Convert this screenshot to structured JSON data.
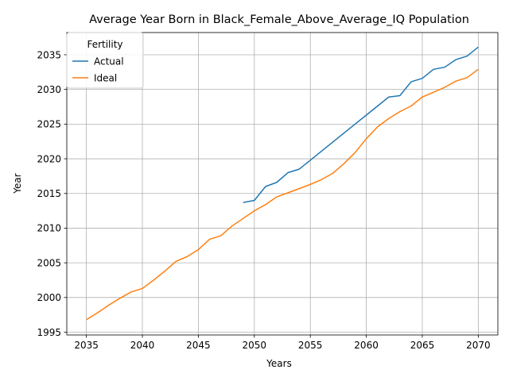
{
  "chart_data": {
    "type": "line",
    "title": "Average Year Born in Black_Female_Above_Average_IQ Population",
    "xlabel": "Years",
    "ylabel": "Year",
    "xlim": [
      2033.25,
      2071.75
    ],
    "ylim": [
      1994.6,
      2038.2
    ],
    "xticks": [
      2035,
      2040,
      2045,
      2050,
      2055,
      2060,
      2065,
      2070
    ],
    "yticks": [
      1995,
      2000,
      2005,
      2010,
      2015,
      2020,
      2025,
      2030,
      2035
    ],
    "grid": true,
    "legend": {
      "title": "Fertility",
      "position": "upper-left"
    },
    "series": [
      {
        "name": "Actual",
        "color": "#1f77b4",
        "x": [
          2049,
          2050,
          2051,
          2052,
          2053,
          2054,
          2055,
          2056,
          2057,
          2058,
          2059,
          2060,
          2061,
          2062,
          2063,
          2064,
          2065,
          2066,
          2067,
          2068,
          2069,
          2070
        ],
        "y": [
          2013.7,
          2014.0,
          2016.0,
          2016.6,
          2018.0,
          2018.5,
          2019.8,
          2021.1,
          2022.4,
          2023.7,
          2025.0,
          2026.3,
          2027.6,
          2028.9,
          2029.1,
          2031.1,
          2031.6,
          2032.9,
          2033.2,
          2034.3,
          2034.8,
          2036.1
        ]
      },
      {
        "name": "Ideal",
        "color": "#ff7f0e",
        "x": [
          2035,
          2036,
          2037,
          2038,
          2039,
          2040,
          2041,
          2042,
          2043,
          2044,
          2045,
          2046,
          2047,
          2048,
          2049,
          2050,
          2051,
          2052,
          2053,
          2054,
          2055,
          2056,
          2057,
          2058,
          2059,
          2060,
          2061,
          2062,
          2063,
          2064,
          2065,
          2066,
          2067,
          2068,
          2069,
          2070
        ],
        "y": [
          1996.8,
          1997.8,
          1998.9,
          1999.9,
          2000.8,
          2001.3,
          2002.5,
          2003.8,
          2005.2,
          2005.9,
          2006.9,
          2008.4,
          2008.9,
          2010.3,
          2011.4,
          2012.5,
          2013.4,
          2014.5,
          2015.1,
          2015.7,
          2016.3,
          2017.0,
          2017.9,
          2019.3,
          2020.9,
          2022.9,
          2024.6,
          2025.8,
          2026.8,
          2027.6,
          2028.9,
          2029.6,
          2030.3,
          2031.2,
          2031.7,
          2032.9
        ]
      }
    ]
  }
}
